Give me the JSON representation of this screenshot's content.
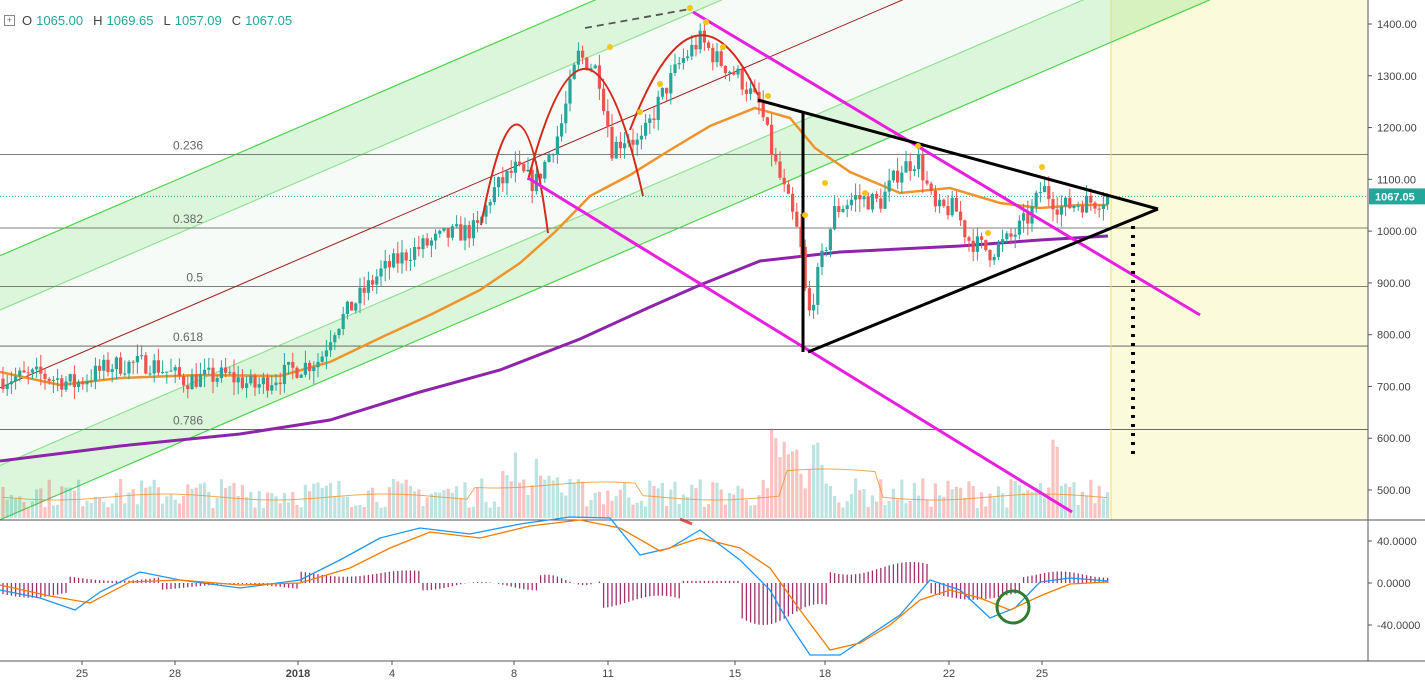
{
  "ohlc": {
    "o_label": "O",
    "o": "1065.00",
    "h_label": "H",
    "h": "1069.65",
    "l_label": "L",
    "l": "1057.09",
    "c_label": "C",
    "c": "1067.05"
  },
  "colors": {
    "up": "#26a69a",
    "down": "#ef5350",
    "ema_fast": "#f0932b",
    "ema_slow": "#8e24aa",
    "channel": "#3ccf3c",
    "channel_mid": "#a01d1d",
    "magenta": "#e91ee0",
    "triangle": "#000000",
    "arc": "#d42a1c",
    "macd": "#2196f3",
    "signal": "#f57c00",
    "hist": "#a0306e",
    "circle": "#2e7d32",
    "dot": "#f5c518"
  },
  "chart_data": {
    "type": "candlestick",
    "y_axis": {
      "ticks": [
        "1400.00",
        "1300.00",
        "1200.00",
        "1100.00",
        "1000.00",
        "900.00",
        "800.00",
        "700.00",
        "600.00",
        "500.00"
      ],
      "range": [
        450,
        1435
      ]
    },
    "x_axis": {
      "ticks": [
        "25",
        "28",
        "2018",
        "4",
        "8",
        "11",
        "15",
        "18",
        "22",
        "25"
      ]
    },
    "last_price": "1067.05",
    "fib_levels": [
      {
        "label": "0.236",
        "price": 1148
      },
      {
        "label": "0.382",
        "price": 1006
      },
      {
        "label": "0.5",
        "price": 893
      },
      {
        "label": "0.618",
        "price": 778
      },
      {
        "label": "0.786",
        "price": 617
      }
    ],
    "macd_axis": {
      "ticks": [
        "40.0000",
        "0.0000",
        "-40.0000"
      ]
    }
  }
}
